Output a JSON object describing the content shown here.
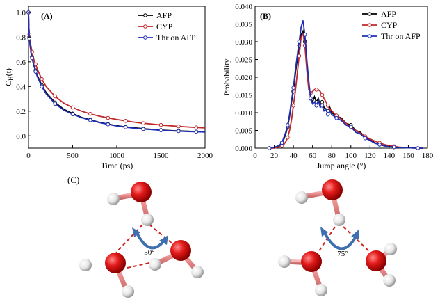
{
  "panels": {
    "a": "(A)",
    "b": "(B)",
    "c": "(C)"
  },
  "colors": {
    "afp": "#000000",
    "cyp": "#c0282b",
    "thr": "#1f2fb5"
  },
  "chart_data": [
    {
      "type": "line",
      "title": "",
      "xlabel": "Time (ps)",
      "ylabel_main": "C",
      "ylabel_sub": "H",
      "ylabel_tail": "(t)",
      "xlim": [
        0,
        2000
      ],
      "ylim": [
        -0.1,
        1.05
      ],
      "xticks": [
        "0",
        "500",
        "1000",
        "1500",
        "2000"
      ],
      "yticks": [
        "0.0",
        "0.2",
        "0.4",
        "0.6",
        "0.8",
        "1.0"
      ],
      "legend_position": "top-right",
      "x": [
        0,
        5,
        10,
        20,
        40,
        60,
        80,
        100,
        150,
        200,
        300,
        400,
        500,
        600,
        700,
        800,
        900,
        1000,
        1100,
        1200,
        1300,
        1400,
        1500,
        1600,
        1700,
        1800,
        1900,
        2000
      ],
      "series": [
        {
          "name": "AFP",
          "color": "#000000",
          "values": [
            1.0,
            0.86,
            0.8,
            0.73,
            0.64,
            0.58,
            0.53,
            0.49,
            0.41,
            0.35,
            0.27,
            0.215,
            0.18,
            0.15,
            0.13,
            0.11,
            0.095,
            0.082,
            0.072,
            0.065,
            0.058,
            0.052,
            0.047,
            0.043,
            0.04,
            0.037,
            0.034,
            0.032
          ]
        },
        {
          "name": "CYP",
          "color": "#c0282b",
          "values": [
            1.0,
            0.88,
            0.82,
            0.76,
            0.68,
            0.62,
            0.58,
            0.54,
            0.46,
            0.4,
            0.32,
            0.265,
            0.23,
            0.2,
            0.178,
            0.16,
            0.145,
            0.132,
            0.121,
            0.111,
            0.102,
            0.095,
            0.088,
            0.082,
            0.077,
            0.072,
            0.068,
            0.064
          ]
        },
        {
          "name": "Thr on AFP",
          "color": "#1f2fb5",
          "values": [
            1.0,
            0.85,
            0.79,
            0.72,
            0.63,
            0.57,
            0.52,
            0.48,
            0.4,
            0.34,
            0.26,
            0.208,
            0.175,
            0.147,
            0.127,
            0.108,
            0.093,
            0.08,
            0.07,
            0.062,
            0.055,
            0.05,
            0.045,
            0.041,
            0.038,
            0.035,
            0.033,
            0.03
          ]
        }
      ]
    },
    {
      "type": "line",
      "title": "",
      "xlabel": "Jump angle (°)",
      "ylabel": "Probability",
      "xlim": [
        0,
        180
      ],
      "ylim": [
        0,
        0.04
      ],
      "xticks": [
        "0",
        "20",
        "40",
        "60",
        "80",
        "100",
        "120",
        "140",
        "160",
        "180"
      ],
      "yticks": [
        "0.000",
        "0.005",
        "0.010",
        "0.015",
        "0.020",
        "0.025",
        "0.030",
        "0.035",
        "0.040"
      ],
      "legend_position": "top-right",
      "x": [
        15,
        20,
        25,
        28,
        30,
        32,
        34,
        36,
        38,
        40,
        42,
        44,
        46,
        48,
        50,
        52,
        54,
        56,
        58,
        60,
        62,
        64,
        66,
        68,
        70,
        72,
        74,
        76,
        78,
        80,
        85,
        90,
        95,
        100,
        105,
        110,
        115,
        120,
        125,
        130,
        135,
        140,
        145,
        150,
        160,
        170,
        175
      ],
      "series": [
        {
          "name": "AFP",
          "color": "#000000",
          "values": [
            0.0,
            0.0002,
            0.0006,
            0.0015,
            0.0025,
            0.004,
            0.006,
            0.009,
            0.013,
            0.016,
            0.021,
            0.025,
            0.029,
            0.032,
            0.033,
            0.03,
            0.024,
            0.018,
            0.014,
            0.013,
            0.0145,
            0.013,
            0.014,
            0.012,
            0.013,
            0.0115,
            0.011,
            0.0105,
            0.0115,
            0.01,
            0.009,
            0.0085,
            0.007,
            0.0065,
            0.005,
            0.0045,
            0.003,
            0.0025,
            0.0015,
            0.001,
            0.0007,
            0.0005,
            0.0003,
            0.0002,
            0.0001,
            0.0,
            0.0
          ]
        },
        {
          "name": "CYP",
          "color": "#c0282b",
          "values": [
            0.0,
            0.0,
            0.0003,
            0.0006,
            0.001,
            0.0018,
            0.003,
            0.005,
            0.008,
            0.012,
            0.016,
            0.021,
            0.026,
            0.031,
            0.0325,
            0.029,
            0.022,
            0.0165,
            0.0155,
            0.016,
            0.0165,
            0.0165,
            0.0165,
            0.016,
            0.015,
            0.014,
            0.013,
            0.012,
            0.011,
            0.0105,
            0.0092,
            0.0082,
            0.007,
            0.006,
            0.005,
            0.0042,
            0.0033,
            0.0026,
            0.002,
            0.0015,
            0.001,
            0.0007,
            0.0005,
            0.0003,
            0.0001,
            0.0,
            0.0
          ]
        },
        {
          "name": "Thr on AFP",
          "color": "#1f2fb5",
          "values": [
            0.0,
            0.0002,
            0.0007,
            0.0015,
            0.003,
            0.0045,
            0.0065,
            0.0095,
            0.0135,
            0.017,
            0.022,
            0.026,
            0.03,
            0.034,
            0.036,
            0.032,
            0.025,
            0.019,
            0.014,
            0.0125,
            0.013,
            0.012,
            0.0135,
            0.0115,
            0.012,
            0.0105,
            0.011,
            0.0095,
            0.0105,
            0.0095,
            0.0085,
            0.0078,
            0.0065,
            0.006,
            0.0045,
            0.004,
            0.0028,
            0.0022,
            0.0014,
            0.001,
            0.0006,
            0.0004,
            0.0003,
            0.0002,
            0.0001,
            0.0,
            0.0
          ]
        }
      ]
    }
  ],
  "molecules": {
    "angle_left": "50°",
    "angle_right": "75°"
  }
}
